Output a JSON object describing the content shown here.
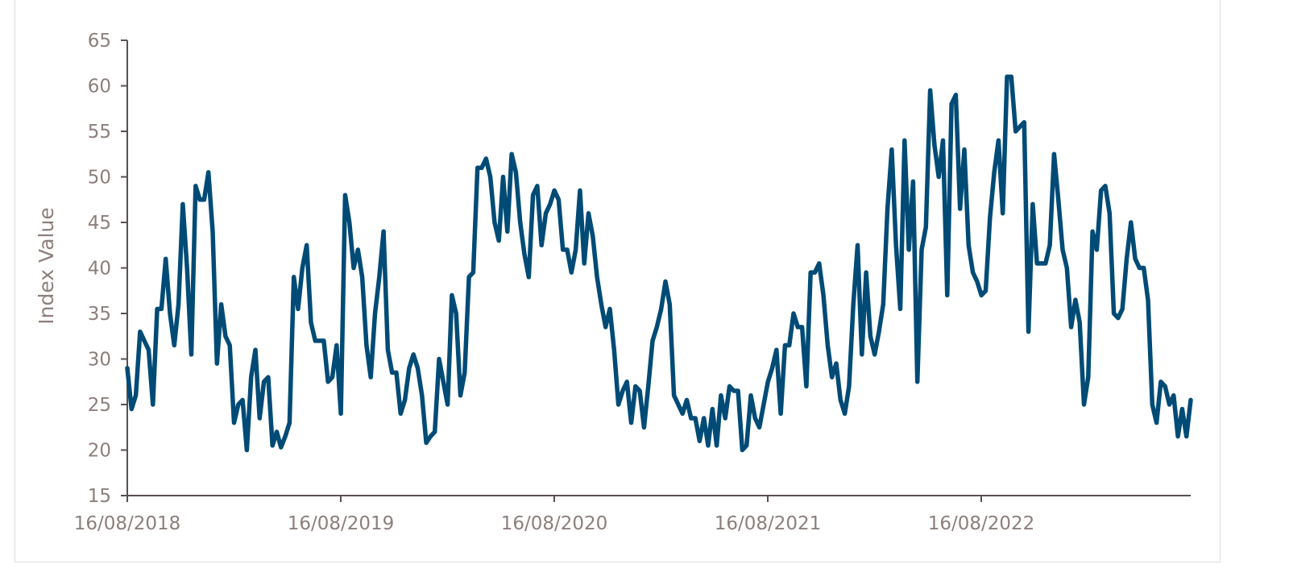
{
  "chart_data": {
    "type": "line",
    "title": "",
    "xlabel": "",
    "ylabel": "Index Value",
    "ylim": [
      15,
      65
    ],
    "yticks": [
      15,
      20,
      25,
      30,
      35,
      40,
      45,
      50,
      55,
      60,
      65
    ],
    "xtick_labels": [
      "16/08/2018",
      "16/08/2019",
      "16/08/2020",
      "16/08/2021",
      "16/08/2022"
    ],
    "x_start": "16/08/2018",
    "x_frequency": "weekly (approx.)",
    "grid": false,
    "legend": "none",
    "series": [
      {
        "name": "Index Value",
        "color": "#004b76",
        "values": [
          29,
          24.5,
          26,
          33,
          32,
          31,
          25,
          35.5,
          35.5,
          41,
          35,
          31.5,
          36,
          47,
          40,
          30.5,
          49,
          47.5,
          47.5,
          50.5,
          44,
          29.5,
          36,
          32.5,
          31.5,
          23,
          25,
          25.5,
          20,
          28,
          31,
          23.5,
          27.5,
          28,
          20.5,
          22,
          20.3,
          21.5,
          23,
          39,
          35.5,
          40,
          42.5,
          34,
          32,
          32,
          32,
          27.5,
          28,
          31.5,
          24,
          48,
          45,
          40,
          42,
          39,
          31.5,
          28,
          35,
          39,
          44,
          31,
          28.5,
          28.5,
          24,
          25.5,
          29,
          30.5,
          29,
          26,
          20.8,
          21.5,
          22,
          30,
          27.5,
          25,
          37,
          35,
          26,
          28.5,
          39,
          39.5,
          51,
          51,
          52,
          50,
          45,
          43,
          50,
          44,
          52.5,
          50.5,
          45,
          41.5,
          39,
          48,
          49,
          42.5,
          46,
          47,
          48.5,
          47.5,
          42,
          42,
          39.5,
          42,
          48.5,
          40.5,
          46,
          43.5,
          39,
          36,
          33.5,
          35.5,
          31,
          25,
          26.5,
          27.5,
          23,
          27,
          26.5,
          22.5,
          27,
          32,
          33.5,
          35.5,
          38.5,
          36,
          26,
          25,
          24,
          25.5,
          23.5,
          23.5,
          21,
          23.5,
          20.5,
          24.5,
          20.5,
          26,
          23.5,
          27,
          26.5,
          26.5,
          20,
          20.5,
          26,
          23.5,
          22.5,
          25,
          27.5,
          29,
          31,
          24,
          31.5,
          31.5,
          35,
          33.5,
          33.5,
          27,
          39.5,
          39.5,
          40.5,
          37,
          31.5,
          28,
          29.5,
          25.5,
          24,
          27,
          36,
          42.5,
          30.5,
          39.5,
          32.5,
          30.5,
          33,
          36,
          46.5,
          53,
          42.5,
          35.5,
          54,
          42,
          49.5,
          27.5,
          42,
          44.5,
          59.5,
          53.5,
          50,
          54,
          37,
          58,
          59,
          46.5,
          53,
          42.5,
          39.5,
          38.5,
          37,
          37.5,
          45.5,
          50.5,
          54,
          46,
          61,
          61,
          55,
          55.5,
          56,
          33,
          47,
          40.5,
          40.5,
          40.5,
          42.5,
          52.5,
          47.5,
          42,
          40,
          33.5,
          36.5,
          34,
          25,
          28,
          44,
          42,
          48.5,
          49,
          46,
          35,
          34.5,
          35.5,
          41,
          45,
          41,
          40,
          40,
          36.5,
          25,
          23,
          27.5,
          27,
          25,
          26,
          21.5,
          24.5,
          21.5,
          25.5
        ]
      }
    ]
  }
}
